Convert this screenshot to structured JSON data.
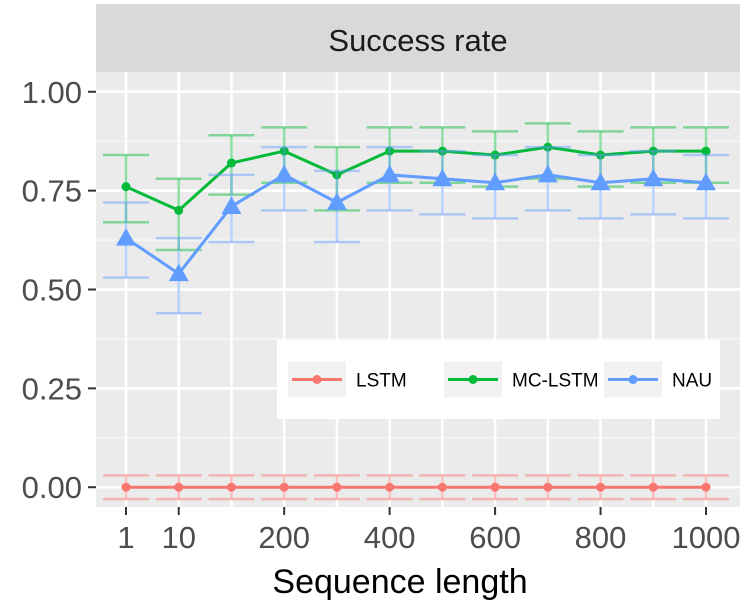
{
  "chart_data": {
    "type": "line",
    "title": "Success rate",
    "xlabel": "Sequence length",
    "ylabel": "",
    "ylim": [
      -0.05,
      1.05
    ],
    "y_ticks": [
      {
        "value": 0.0,
        "label": "0.00"
      },
      {
        "value": 0.25,
        "label": "0.25"
      },
      {
        "value": 0.5,
        "label": "0.50"
      },
      {
        "value": 0.75,
        "label": "0.75"
      },
      {
        "value": 1.0,
        "label": "1.00"
      }
    ],
    "x_positions": [
      1,
      10,
      100,
      200,
      300,
      400,
      500,
      600,
      700,
      800,
      900,
      1000
    ],
    "x_ticks": [
      {
        "value": 1,
        "label": "1"
      },
      {
        "value": 10,
        "label": "10"
      },
      {
        "value": 200,
        "label": "200"
      },
      {
        "value": 400,
        "label": "400"
      },
      {
        "value": 600,
        "label": "600"
      },
      {
        "value": 800,
        "label": "800"
      },
      {
        "value": 1000,
        "label": "1000"
      }
    ],
    "grid": true,
    "legend_position": "inside-right",
    "series": [
      {
        "name": "LSTM",
        "color": "#F8766D",
        "marker": "circle",
        "values": [
          0,
          0,
          0,
          0,
          0,
          0,
          0,
          0,
          0,
          0,
          0,
          0
        ],
        "lower": [
          -0.03,
          -0.03,
          -0.03,
          -0.03,
          -0.03,
          -0.03,
          -0.03,
          -0.03,
          -0.03,
          -0.03,
          -0.03,
          -0.03
        ],
        "upper": [
          0.03,
          0.03,
          0.03,
          0.03,
          0.03,
          0.03,
          0.03,
          0.03,
          0.03,
          0.03,
          0.03,
          0.03
        ]
      },
      {
        "name": "MC-LSTM",
        "color": "#00BA38",
        "marker": "circle",
        "values": [
          0.76,
          0.7,
          0.82,
          0.85,
          0.79,
          0.85,
          0.85,
          0.84,
          0.86,
          0.84,
          0.85,
          0.85
        ],
        "lower": [
          0.67,
          0.6,
          0.74,
          0.77,
          0.7,
          0.77,
          0.77,
          0.76,
          0.78,
          0.76,
          0.77,
          0.77
        ],
        "upper": [
          0.84,
          0.78,
          0.89,
          0.91,
          0.86,
          0.91,
          0.91,
          0.9,
          0.92,
          0.9,
          0.91,
          0.91
        ]
      },
      {
        "name": "NAU",
        "color": "#619CFF",
        "marker": "triangle",
        "values": [
          0.63,
          0.54,
          0.71,
          0.79,
          0.72,
          0.79,
          0.78,
          0.77,
          0.79,
          0.77,
          0.78,
          0.77
        ],
        "lower": [
          0.53,
          0.44,
          0.62,
          0.7,
          0.62,
          0.7,
          0.69,
          0.68,
          0.7,
          0.68,
          0.69,
          0.68
        ],
        "upper": [
          0.72,
          0.63,
          0.79,
          0.86,
          0.8,
          0.86,
          0.85,
          0.84,
          0.86,
          0.84,
          0.85,
          0.84
        ]
      }
    ]
  }
}
